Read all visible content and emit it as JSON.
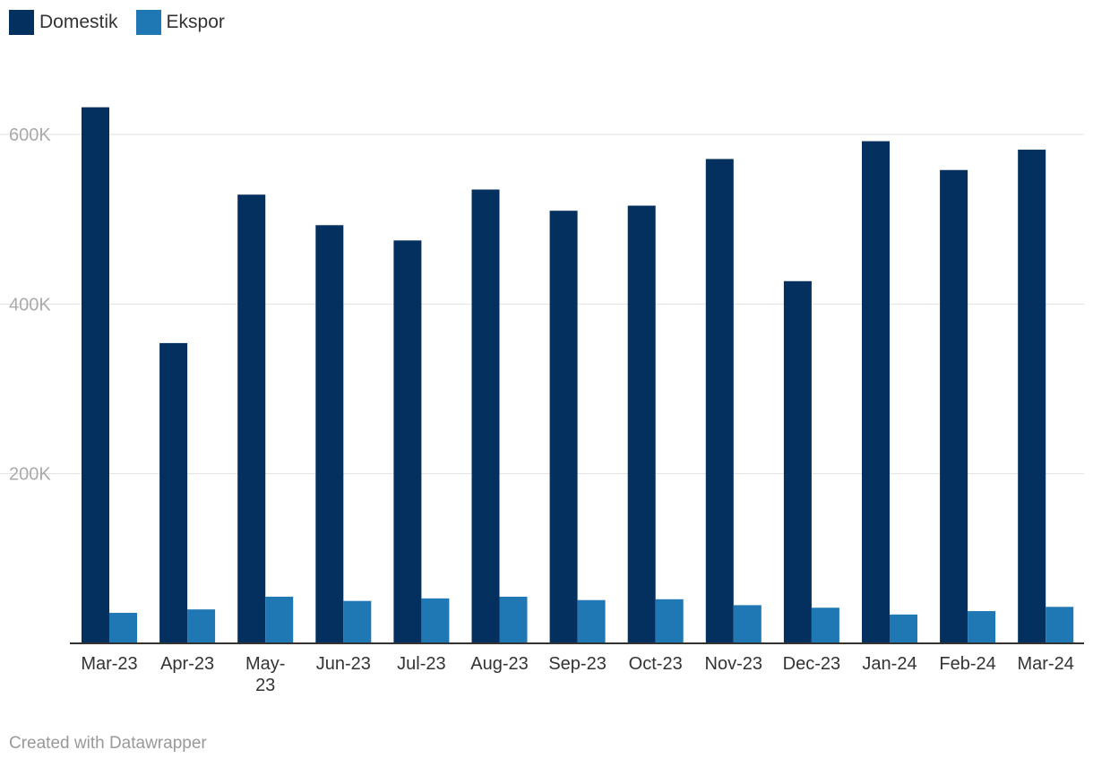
{
  "chart_data": {
    "type": "bar",
    "categories": [
      "Mar-23",
      "Apr-23",
      "May-23",
      "Jun-23",
      "Jul-23",
      "Aug-23",
      "Sep-23",
      "Oct-23",
      "Nov-23",
      "Dec-23",
      "Jan-24",
      "Feb-24",
      "Mar-24"
    ],
    "series": [
      {
        "name": "Domestik",
        "color": "#03305f",
        "values": [
          632000,
          354000,
          529000,
          493000,
          475000,
          535000,
          510000,
          516000,
          571000,
          427000,
          592000,
          558000,
          582000
        ]
      },
      {
        "name": "Ekspor",
        "color": "#1f77b4",
        "values": [
          36000,
          40000,
          55000,
          50000,
          53000,
          55000,
          51000,
          52000,
          45000,
          42000,
          34000,
          38000,
          43000
        ]
      }
    ],
    "yticks": [
      200000,
      400000,
      600000
    ],
    "ytick_labels": [
      "200K",
      "400K",
      "600K"
    ],
    "ylim": [
      0,
      700000
    ],
    "grid": true,
    "legend_position": "top-left"
  },
  "credit": "Created with Datawrapper"
}
